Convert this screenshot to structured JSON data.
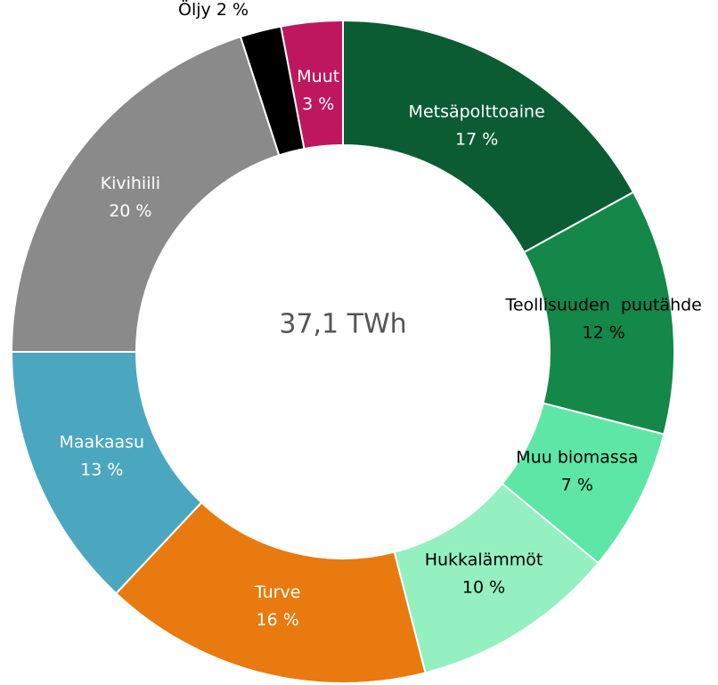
{
  "chart_data": {
    "type": "donut",
    "center_label": "37,1 TWh",
    "categories": [
      "Metsäpolttoaine",
      "Teollisuuden  puutähde",
      "Muu biomassa",
      "Hukkalämmöt",
      "Turve",
      "Maakaasu",
      "Kivihiili",
      "Öljy",
      "Muut"
    ],
    "values": [
      17,
      12,
      7,
      10,
      16,
      13,
      20,
      2,
      3
    ],
    "value_labels": [
      "17 %",
      "12 %",
      "7 %",
      "10 %",
      "16 %",
      "13 %",
      "20 %",
      "2 %",
      "3 %"
    ],
    "colors": [
      "#0b5c33",
      "#138848",
      "#5de6a6",
      "#94efc1",
      "#e87a10",
      "#4ba7bf",
      "#8a8a8a",
      "#000000",
      "#bf175e"
    ],
    "label_colors": [
      "#ffffff",
      "#000000",
      "#000000",
      "#000000",
      "#ffffff",
      "#ffffff",
      "#ffffff",
      "#000000",
      "#ffffff"
    ]
  }
}
